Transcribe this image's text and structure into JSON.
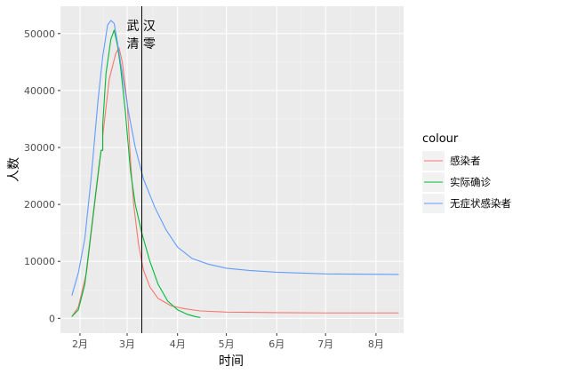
{
  "chart_data": {
    "type": "line",
    "title": "",
    "xlabel": "时间",
    "ylabel": "人数",
    "x_tick_labels": [
      "2月",
      "3月",
      "4月",
      "5月",
      "6月",
      "7月",
      "8月"
    ],
    "x_tick_dates": [
      "2020-02-01",
      "2020-03-01",
      "2020-04-01",
      "2020-05-01",
      "2020-06-01",
      "2020-07-01",
      "2020-08-01"
    ],
    "xlim": [
      "2020-01-20",
      "2020-08-18"
    ],
    "y_tick_labels": [
      "0",
      "10000",
      "20000",
      "30000",
      "40000",
      "50000"
    ],
    "y_ticks": [
      0,
      10000,
      20000,
      30000,
      40000,
      50000
    ],
    "ylim": [
      -2600,
      54800
    ],
    "grid": true,
    "background": "#ebebeb",
    "legend": {
      "title": "colour",
      "position": "right"
    },
    "vline": {
      "x": "2020-03-10",
      "label_line1": "武 汉",
      "label_line2": "清 零",
      "color": "#000000"
    },
    "series": [
      {
        "name": "感染者",
        "color": "#F8766D",
        "points": [
          [
            "2020-01-27",
            300
          ],
          [
            "2020-01-31",
            2000
          ],
          [
            "2020-02-05",
            8000
          ],
          [
            "2020-02-10",
            20000
          ],
          [
            "2020-02-14",
            29500
          ],
          [
            "2020-02-15",
            29500
          ],
          [
            "2020-02-15",
            32000
          ],
          [
            "2020-02-19",
            42000
          ],
          [
            "2020-02-23",
            46500
          ],
          [
            "2020-02-25",
            47500
          ],
          [
            "2020-02-27",
            45000
          ],
          [
            "2020-03-01",
            38000
          ],
          [
            "2020-03-03",
            28000
          ],
          [
            "2020-03-05",
            20000
          ],
          [
            "2020-03-08",
            13000
          ],
          [
            "2020-03-11",
            8500
          ],
          [
            "2020-03-15",
            5500
          ],
          [
            "2020-03-20",
            3500
          ],
          [
            "2020-03-28",
            2200
          ],
          [
            "2020-04-05",
            1700
          ],
          [
            "2020-04-15",
            1300
          ],
          [
            "2020-05-01",
            1100
          ],
          [
            "2020-06-01",
            1000
          ],
          [
            "2020-07-01",
            950
          ],
          [
            "2020-08-15",
            950
          ]
        ]
      },
      {
        "name": "实际确诊",
        "color": "#00BA38",
        "points": [
          [
            "2020-01-27",
            300
          ],
          [
            "2020-01-31",
            1500
          ],
          [
            "2020-02-04",
            6000
          ],
          [
            "2020-02-09",
            18000
          ],
          [
            "2020-02-13",
            27500
          ],
          [
            "2020-02-14",
            29500
          ],
          [
            "2020-02-15",
            29500
          ],
          [
            "2020-02-15",
            34000
          ],
          [
            "2020-02-17",
            43000
          ],
          [
            "2020-02-20",
            49000
          ],
          [
            "2020-02-22",
            50600
          ],
          [
            "2020-02-24",
            48000
          ],
          [
            "2020-02-26",
            44000
          ],
          [
            "2020-02-29",
            36000
          ],
          [
            "2020-03-03",
            26000
          ],
          [
            "2020-03-06",
            20000
          ],
          [
            "2020-03-10",
            15000
          ],
          [
            "2020-03-15",
            10000
          ],
          [
            "2020-03-20",
            6000
          ],
          [
            "2020-03-26",
            3000
          ],
          [
            "2020-04-01",
            1500
          ],
          [
            "2020-04-07",
            700
          ],
          [
            "2020-04-12",
            300
          ],
          [
            "2020-04-15",
            150
          ]
        ]
      },
      {
        "name": "无症状感染者",
        "color": "#619CFF",
        "points": [
          [
            "2020-01-27",
            4000
          ],
          [
            "2020-01-31",
            8000
          ],
          [
            "2020-02-04",
            14000
          ],
          [
            "2020-02-08",
            25000
          ],
          [
            "2020-02-12",
            38000
          ],
          [
            "2020-02-15",
            46000
          ],
          [
            "2020-02-18",
            51500
          ],
          [
            "2020-02-20",
            52300
          ],
          [
            "2020-02-22",
            51800
          ],
          [
            "2020-02-24",
            48500
          ],
          [
            "2020-02-27",
            43000
          ],
          [
            "2020-03-02",
            36000
          ],
          [
            "2020-03-06",
            30000
          ],
          [
            "2020-03-11",
            24500
          ],
          [
            "2020-03-18",
            19500
          ],
          [
            "2020-03-25",
            15500
          ],
          [
            "2020-04-01",
            12500
          ],
          [
            "2020-04-10",
            10500
          ],
          [
            "2020-04-20",
            9500
          ],
          [
            "2020-05-01",
            8800
          ],
          [
            "2020-05-15",
            8400
          ],
          [
            "2020-06-01",
            8100
          ],
          [
            "2020-07-01",
            7800
          ],
          [
            "2020-08-15",
            7700
          ]
        ]
      }
    ]
  }
}
